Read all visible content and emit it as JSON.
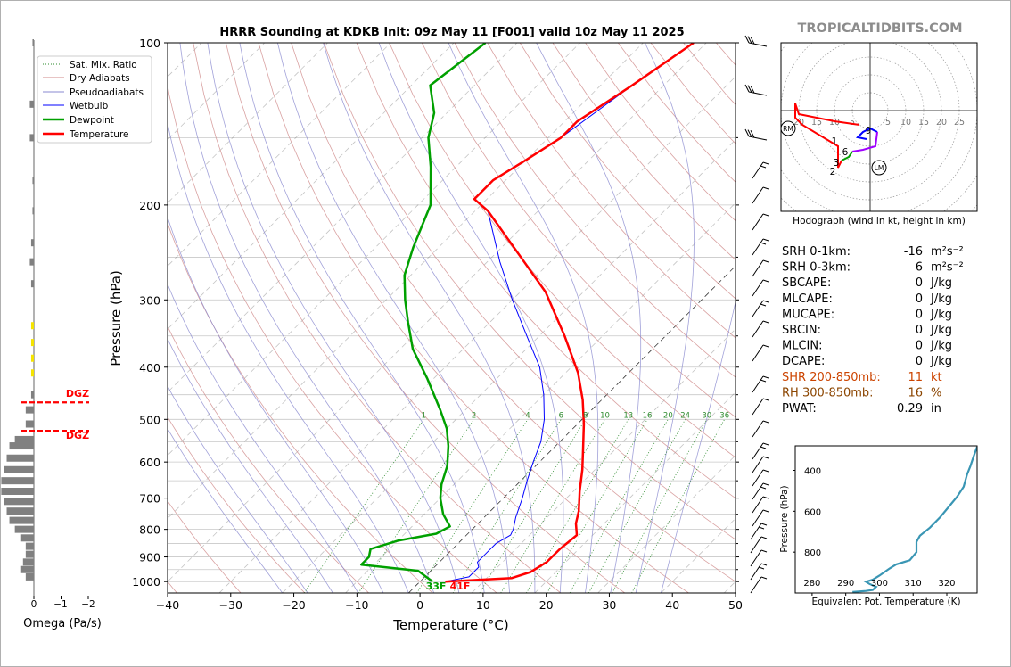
{
  "title": "HRRR Sounding at KDKB Init: 09z May 11 [F001] valid 10z May 11 2025",
  "brand": "TROPICALTIDBITS.COM",
  "skewt": {
    "xlabel": "Temperature (°C)",
    "ylabel": "Pressure (hPa)",
    "xticks": [
      "−40",
      "−30",
      "−20",
      "−10",
      "0",
      "10",
      "20",
      "30",
      "40",
      "50"
    ],
    "yticks": [
      "100",
      "200",
      "300",
      "400",
      "500",
      "600",
      "700",
      "800",
      "900",
      "1000"
    ],
    "mixing_ratio_labels": [
      "1",
      "2",
      "4",
      "6",
      "8",
      "10",
      "13",
      "16",
      "20",
      "24",
      "30",
      "36"
    ],
    "surface_dewpoint_label": "33F",
    "surface_temperature_label": "41F",
    "legend": [
      "Sat. Mix. Ratio",
      "Dry Adiabats",
      "Pseudoadiabats",
      "Wetbulb",
      "Dewpoint",
      "Temperature"
    ]
  },
  "omega": {
    "xlabel": "Omega (Pa/s)",
    "xticks": [
      "0",
      "−1",
      "−2"
    ],
    "dgz_label_top": "DGZ",
    "dgz_label_bottom": "DGZ"
  },
  "hodograph": {
    "caption": "Hodograph (wind in kt, height in km)",
    "ring_labels": [
      "20",
      "15",
      "10",
      "5",
      "5",
      "10",
      "15",
      "20",
      "25"
    ],
    "height_labels": [
      "9",
      "1",
      "6",
      "3",
      "2"
    ],
    "rm_label": "RM",
    "lm_label": "LM"
  },
  "indices": [
    {
      "label": "SRH 0-1km:",
      "value": "-16",
      "unit": "m²s⁻²"
    },
    {
      "label": "SRH 0-3km:",
      "value": "6",
      "unit": "m²s⁻²"
    },
    {
      "label": "SBCAPE:",
      "value": "0",
      "unit": "J/kg"
    },
    {
      "label": "MLCAPE:",
      "value": "0",
      "unit": "J/kg"
    },
    {
      "label": "MUCAPE:",
      "value": "0",
      "unit": "J/kg"
    },
    {
      "label": "SBCIN:",
      "value": "0",
      "unit": "J/kg"
    },
    {
      "label": "MLCIN:",
      "value": "0",
      "unit": "J/kg"
    },
    {
      "label": "DCAPE:",
      "value": "0",
      "unit": "J/kg"
    },
    {
      "label": "SHR 200-850mb:",
      "value": "11",
      "unit": "kt"
    },
    {
      "label": "RH 300-850mb:",
      "value": "16",
      "unit": "%"
    },
    {
      "label": "PWAT:",
      "value": "0.29",
      "unit": "in"
    }
  ],
  "theta_e_panel": {
    "xlabel": "Equivalent Pot. Temperature (K)",
    "ylabel": "Pressure (hPa)",
    "xticks": [
      "280",
      "290",
      "300",
      "310",
      "320"
    ],
    "yticks": [
      "400",
      "600",
      "800"
    ]
  },
  "colors": {
    "temperature": "#ff0000",
    "dewpoint": "#00a000",
    "wetbulb": "#0000ff",
    "dry_adiabat": "#d08a8a",
    "pseudoadiabat": "#8a8ad0",
    "mixing_ratio": "#2e8b2e",
    "theta_e": "#3a96b4",
    "brand": "#8c8c8c",
    "shear": "#cc4400",
    "rh": "#8b4500"
  },
  "chart_data": [
    {
      "type": "line",
      "name_hint": "skew-t",
      "xlim": [
        -40,
        50
      ],
      "ylim": [
        1050,
        100
      ],
      "y_scale": "log",
      "skew": "45°",
      "series": [
        {
          "name": "Temperature",
          "color": "#ff0000",
          "points": [
            [
              4,
              1000
            ],
            [
              14,
              985
            ],
            [
              16,
              960
            ],
            [
              17,
              920
            ],
            [
              17,
              870
            ],
            [
              17.5,
              820
            ],
            [
              15.5,
              780
            ],
            [
              14,
              740
            ],
            [
              11,
              680
            ],
            [
              8,
              620
            ],
            [
              5,
              570
            ],
            [
              1,
              510
            ],
            [
              -3,
              460
            ],
            [
              -8,
              410
            ],
            [
              -16,
              350
            ],
            [
              -26,
              290
            ],
            [
              -38,
              240
            ],
            [
              -48,
              205
            ],
            [
              -52,
              195
            ],
            [
              -52,
              180
            ],
            [
              -50,
              165
            ],
            [
              -48,
              150
            ],
            [
              -48,
              140
            ],
            [
              -45,
              120
            ],
            [
              -42,
              100
            ]
          ]
        },
        {
          "name": "Dewpoint",
          "color": "#00a000",
          "points": [
            [
              2,
              1000
            ],
            [
              -2,
              955
            ],
            [
              -12,
              930
            ],
            [
              -12,
              900
            ],
            [
              -13,
              870
            ],
            [
              -10,
              840
            ],
            [
              -5,
              815
            ],
            [
              -4,
              790
            ],
            [
              -7,
              750
            ],
            [
              -10,
              700
            ],
            [
              -12,
              660
            ],
            [
              -14,
              610
            ],
            [
              -17,
              560
            ],
            [
              -20,
              520
            ],
            [
              -24,
              480
            ],
            [
              -31,
              420
            ],
            [
              -38,
              370
            ],
            [
              -43,
              330
            ],
            [
              -47,
              300
            ],
            [
              -51,
              270
            ],
            [
              -54,
              240
            ],
            [
              -58,
              200
            ],
            [
              -64,
              170
            ],
            [
              -69,
              150
            ],
            [
              -72,
              135
            ],
            [
              -77,
              120
            ],
            [
              -75,
              100
            ]
          ]
        },
        {
          "name": "Wetbulb",
          "color": "#0000ff",
          "points": [
            [
              4,
              1000
            ],
            [
              7,
              980
            ],
            [
              7,
              940
            ],
            [
              6,
              920
            ],
            [
              6,
              880
            ],
            [
              6,
              850
            ],
            [
              7,
              820
            ],
            [
              6.5,
              800
            ],
            [
              5,
              760
            ],
            [
              3,
              700
            ],
            [
              1,
              650
            ],
            [
              -1,
              600
            ],
            [
              -3,
              550
            ],
            [
              -6,
              500
            ],
            [
              -10,
              450
            ],
            [
              -15,
              400
            ],
            [
              -22,
              350
            ],
            [
              -30,
              300
            ],
            [
              -38,
              255
            ],
            [
              -48,
              205
            ],
            [
              -52,
              195
            ],
            [
              -52,
              180
            ],
            [
              -50,
              165
            ],
            [
              -48,
              150
            ],
            [
              -45,
              120
            ],
            [
              -42,
              100
            ]
          ]
        }
      ]
    },
    {
      "type": "bar",
      "name_hint": "omega",
      "xlim": [
        0,
        -2
      ],
      "values": [
        {
          "p": 100,
          "w": -0.05
        },
        {
          "p": 130,
          "w": -0.15
        },
        {
          "p": 150,
          "w": -0.15
        },
        {
          "p": 180,
          "w": -0.05
        },
        {
          "p": 205,
          "w": -0.05
        },
        {
          "p": 235,
          "w": -0.1
        },
        {
          "p": 255,
          "w": -0.15
        },
        {
          "p": 280,
          "w": -0.1
        },
        {
          "p": 335,
          "w": -0.1
        },
        {
          "p": 360,
          "w": -0.1
        },
        {
          "p": 385,
          "w": -0.1
        },
        {
          "p": 410,
          "w": -0.1
        },
        {
          "p": 450,
          "w": -0.1
        },
        {
          "p": 480,
          "w": -0.3
        },
        {
          "p": 510,
          "w": -0.3
        },
        {
          "p": 545,
          "w": -0.7
        },
        {
          "p": 560,
          "w": -0.9
        },
        {
          "p": 590,
          "w": -1.0
        },
        {
          "p": 620,
          "w": -1.1
        },
        {
          "p": 650,
          "w": -1.2
        },
        {
          "p": 680,
          "w": -1.2
        },
        {
          "p": 710,
          "w": -1.1
        },
        {
          "p": 740,
          "w": -1.0
        },
        {
          "p": 770,
          "w": -0.9
        },
        {
          "p": 800,
          "w": -0.7
        },
        {
          "p": 830,
          "w": -0.5
        },
        {
          "p": 860,
          "w": -0.3
        },
        {
          "p": 890,
          "w": -0.3
        },
        {
          "p": 920,
          "w": -0.4
        },
        {
          "p": 950,
          "w": -0.5
        },
        {
          "p": 980,
          "w": -0.3
        }
      ],
      "dgz_bounds_hpa": [
        465,
        525
      ]
    },
    {
      "type": "line",
      "name_hint": "hodograph",
      "xlim": [
        -25,
        30
      ],
      "ylim": [
        -27,
        19
      ],
      "series": [
        {
          "name": "0-1km",
          "color": "#0000ff",
          "points": [
            [
              -1,
              -8
            ],
            [
              -3.5,
              -7.5
            ],
            [
              -2,
              -6
            ],
            [
              0,
              -5
            ],
            [
              2,
              -6
            ]
          ]
        },
        {
          "name": "1-3km",
          "color": "#a000ff",
          "points": [
            [
              2,
              -6
            ],
            [
              1.5,
              -10
            ],
            [
              -2,
              -11
            ],
            [
              -5,
              -11.5
            ]
          ]
        },
        {
          "name": "3-6km",
          "color": "#00a000",
          "points": [
            [
              -5,
              -11.5
            ],
            [
              -6,
              -13
            ],
            [
              -8,
              -14
            ]
          ]
        },
        {
          "name": "6-9km",
          "color": "#ff0000",
          "points": [
            [
              -8,
              -14
            ],
            [
              -9,
              -16
            ],
            [
              -9,
              -10
            ],
            [
              -14,
              -7
            ],
            [
              -19,
              -4
            ],
            [
              -21,
              -2
            ],
            [
              -21,
              2
            ],
            [
              -20,
              -1
            ],
            [
              -10,
              -3
            ],
            [
              -3,
              -4
            ]
          ]
        }
      ],
      "storm_motion": {
        "RM": [
          -23,
          -5
        ],
        "LM": [
          2.5,
          -16
        ]
      }
    },
    {
      "type": "line",
      "name_hint": "theta-e",
      "xlim": [
        275,
        329
      ],
      "ylim": [
        1000,
        280
      ],
      "series": [
        {
          "name": "Theta-e",
          "color": "#3a96b4",
          "points": [
            [
              292,
              995
            ],
            [
              296,
              990
            ],
            [
              298,
              985
            ],
            [
              299,
              970
            ],
            [
              297,
              955
            ],
            [
              296,
              945
            ],
            [
              298,
              935
            ],
            [
              300,
              915
            ],
            [
              303,
              880
            ],
            [
              305,
              860
            ],
            [
              309,
              840
            ],
            [
              311,
              800
            ],
            [
              311,
              780
            ],
            [
              311,
              750
            ],
            [
              312,
              720
            ],
            [
              315,
              680
            ],
            [
              318,
              630
            ],
            [
              320,
              590
            ],
            [
              323,
              530
            ],
            [
              325,
              480
            ],
            [
              326,
              420
            ],
            [
              327,
              380
            ],
            [
              328,
              330
            ],
            [
              329,
              285
            ]
          ]
        }
      ]
    }
  ]
}
